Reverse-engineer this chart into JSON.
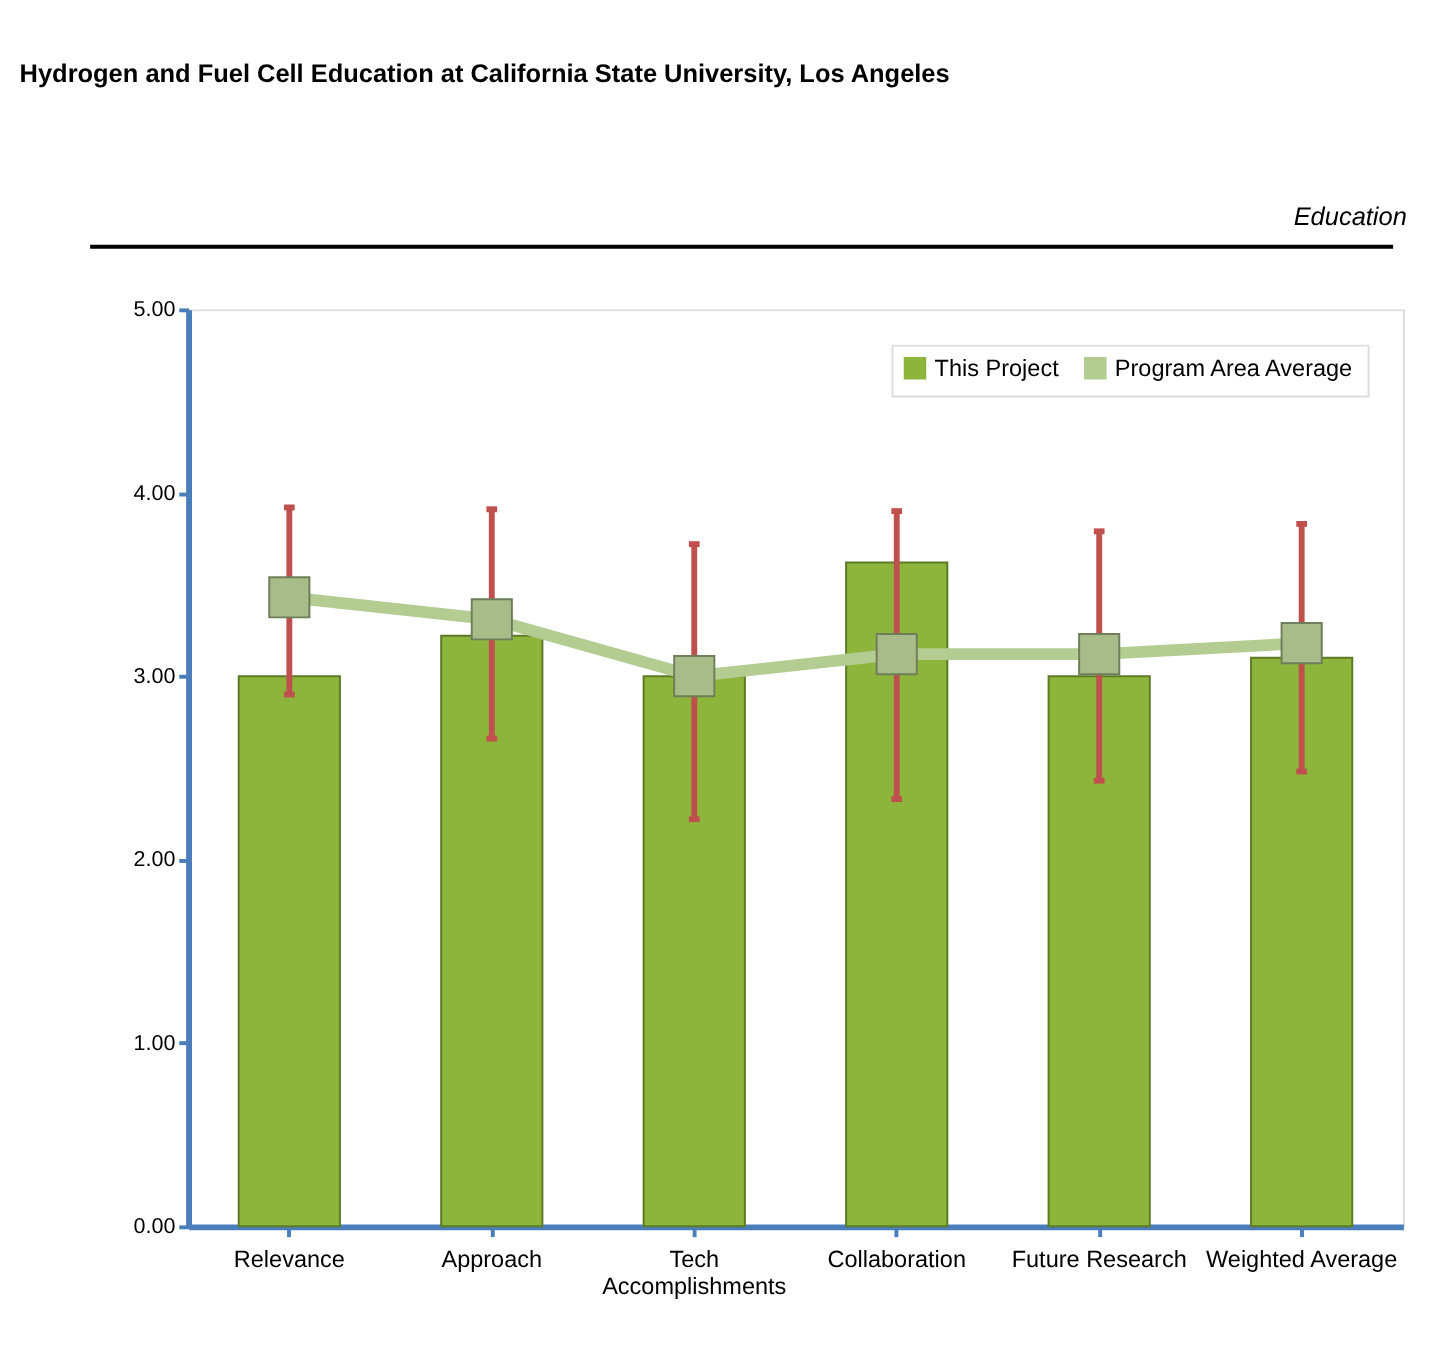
{
  "chart_data": {
    "type": "bar",
    "title": "Hydrogen and Fuel Cell Education at California State University, Los Angeles",
    "subtitle": "Education",
    "categories": [
      "Relevance",
      "Approach",
      "Tech Accomplishments",
      "Collaboration",
      "Future Research",
      "Weighted Average"
    ],
    "series": [
      {
        "name": "This Project",
        "color": "#8db53c",
        "values": [
          3.0,
          3.22,
          3.0,
          3.62,
          3.0,
          3.1
        ],
        "errors": [
          [
            2.9,
            3.92
          ],
          [
            2.66,
            3.91
          ],
          [
            2.22,
            3.72
          ],
          [
            2.33,
            3.9
          ],
          [
            2.43,
            3.79
          ],
          [
            2.48,
            3.83
          ]
        ]
      },
      {
        "name": "Program Area Average",
        "type": "line",
        "color": "#b3cc92",
        "marker": "square",
        "values": [
          3.43,
          3.31,
          3.0,
          3.12,
          3.12,
          3.18
        ]
      }
    ],
    "ylim": [
      0,
      5
    ],
    "yticks": [
      {
        "value": 0,
        "label": "0.00"
      },
      {
        "value": 1,
        "label": "1.00"
      },
      {
        "value": 2,
        "label": "2.00"
      },
      {
        "value": 3,
        "label": "3.00"
      },
      {
        "value": 4,
        "label": "4.00"
      },
      {
        "value": 5,
        "label": "5.00"
      }
    ],
    "legend": "top right",
    "grid": false
  }
}
